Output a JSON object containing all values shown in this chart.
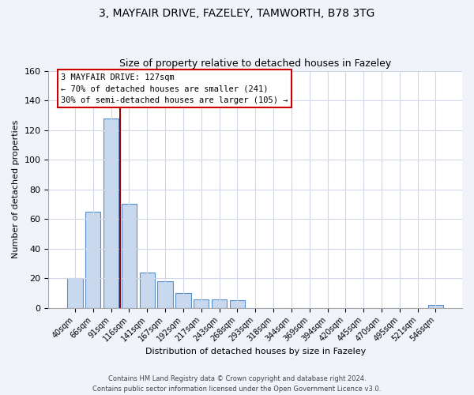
{
  "title": "3, MAYFAIR DRIVE, FAZELEY, TAMWORTH, B78 3TG",
  "subtitle": "Size of property relative to detached houses in Fazeley",
  "xlabel": "Distribution of detached houses by size in Fazeley",
  "ylabel": "Number of detached properties",
  "bar_labels": [
    "40sqm",
    "66sqm",
    "91sqm",
    "116sqm",
    "141sqm",
    "167sqm",
    "192sqm",
    "217sqm",
    "243sqm",
    "268sqm",
    "293sqm",
    "318sqm",
    "344sqm",
    "369sqm",
    "394sqm",
    "420sqm",
    "445sqm",
    "470sqm",
    "495sqm",
    "521sqm",
    "546sqm"
  ],
  "bar_values": [
    20,
    65,
    128,
    70,
    24,
    18,
    10,
    6,
    6,
    5,
    0,
    0,
    0,
    0,
    0,
    0,
    0,
    0,
    0,
    0,
    2
  ],
  "bar_color": "#c8d8ee",
  "bar_edge_color": "#5590cc",
  "property_line_x": 2.5,
  "annotation_line1": "3 MAYFAIR DRIVE: 127sqm",
  "annotation_line2": "← 70% of detached houses are smaller (241)",
  "annotation_line3": "30% of semi-detached houses are larger (105) →",
  "annotation_box_color": "#ffffff",
  "annotation_box_edge": "#cc0000",
  "vline_color": "#990000",
  "ylim": [
    0,
    160
  ],
  "yticks": [
    0,
    20,
    40,
    60,
    80,
    100,
    120,
    140,
    160
  ],
  "footer1": "Contains HM Land Registry data © Crown copyright and database right 2024.",
  "footer2": "Contains public sector information licensed under the Open Government Licence v3.0.",
  "bg_color": "#f0f4fa",
  "plot_bg_color": "#ffffff",
  "grid_color": "#d0d8e8"
}
